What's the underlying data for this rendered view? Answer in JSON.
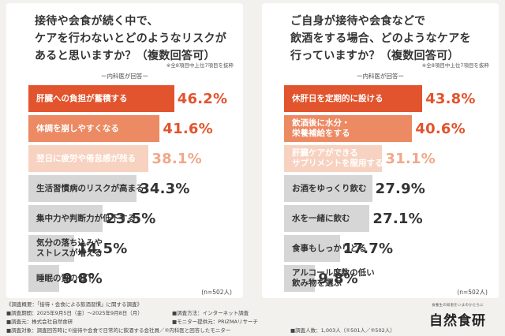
{
  "colors": {
    "bar_top": "#e2542d",
    "bar_second": "#ec8a63",
    "bar_third": "#f7d2c0",
    "bar_rest": "#d6d6d6",
    "value_top": "#e2542d",
    "value_third": "#f0a88a",
    "value_rest": "#333333"
  },
  "chart_data": [
    {
      "type": "bar",
      "orientation": "horizontal",
      "title": "接待や会食が続く中で、\nケアを行わないとどのようなリスクが\nあると思いますか？（複数回答可）",
      "note": "※全8項目中上位7項目を抜粋",
      "respondent": "ー内科医が回答ー",
      "n_label": "(n=502人)",
      "xlim": [
        0,
        50
      ],
      "unit": "%",
      "categories": [
        "肝臓への負担が蓄積する",
        "体調を崩しやすくなる",
        "翌日に疲労や倦怠感が残る",
        "生活習慣病のリスクが高まる",
        "集中力や判断力が低下する",
        "気分の落ち込みや\nストレスが増える",
        "睡眠の質の低下"
      ],
      "values": [
        46.2,
        41.6,
        38.1,
        34.3,
        23.5,
        14.5,
        9.8
      ],
      "value_labels": [
        "46.2%",
        "41.6%",
        "38.1%",
        "34.3%",
        "23.5%",
        "14.5%",
        "9.8%"
      ]
    },
    {
      "type": "bar",
      "orientation": "horizontal",
      "title": "ご自身が接待や会食などで\n飲酒をする場合、どのようなケアを\n行っていますか？（複数回答可）",
      "note": "※全8項目中上位7項目を抜粋",
      "respondent": "ー内科医が回答ー",
      "n_label": "(n=502人)",
      "xlim": [
        0,
        50
      ],
      "unit": "%",
      "categories": [
        "休肝日を定期的に設ける",
        "飲酒後に水分・\n栄養補給をする",
        "肝臓ケアができる\nサプリメントを服用する",
        "お酒をゆっくり飲む",
        "水を一緒に飲む",
        "食事もしっかりとる",
        "アルコール度数の低い\n飲み物を選ぶ"
      ],
      "values": [
        43.8,
        40.6,
        31.1,
        27.9,
        27.1,
        17.7,
        9.8
      ],
      "value_labels": [
        "43.8%",
        "40.6%",
        "31.1%",
        "27.9%",
        "27.1%",
        "17.7%",
        "9.8%"
      ]
    }
  ],
  "footer": {
    "summary": "《調査概要：「接待・会食による飲酒習慣」に関する調査》",
    "period": "■調査期間：2025年9月5日（金）〜2025年9月8日（月）",
    "method": "■調査方法：インターネット調査",
    "sponsor": "■調査元：株式会社自然食研",
    "monitor": "■モニター提供元：PRIZMAリサーチ",
    "target": "■調査対象：調査回答時に①接待や会食で日常的に飲酒する会社員／②内科医と回答したモニター",
    "count": "■調査人数：1,003人（①501人／②502人）"
  },
  "brand": {
    "tagline": "食養生の知恵をいまのかたちに",
    "name": "自然食研"
  }
}
